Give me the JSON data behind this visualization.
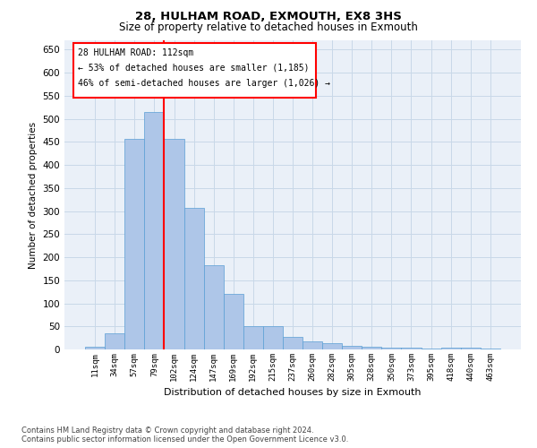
{
  "title1": "28, HULHAM ROAD, EXMOUTH, EX8 3HS",
  "title2": "Size of property relative to detached houses in Exmouth",
  "xlabel": "Distribution of detached houses by size in Exmouth",
  "ylabel": "Number of detached properties",
  "annotation_line1": "28 HULHAM ROAD: 112sqm",
  "annotation_line2": "← 53% of detached houses are smaller (1,185)",
  "annotation_line3": "46% of semi-detached houses are larger (1,026) →",
  "categories": [
    "11sqm",
    "34sqm",
    "57sqm",
    "79sqm",
    "102sqm",
    "124sqm",
    "147sqm",
    "169sqm",
    "192sqm",
    "215sqm",
    "237sqm",
    "260sqm",
    "282sqm",
    "305sqm",
    "328sqm",
    "350sqm",
    "373sqm",
    "395sqm",
    "418sqm",
    "440sqm",
    "463sqm"
  ],
  "values": [
    5,
    35,
    457,
    515,
    457,
    307,
    182,
    120,
    50,
    50,
    28,
    17,
    13,
    8,
    6,
    4,
    3,
    2,
    4,
    3,
    2
  ],
  "bar_color": "#aec6e8",
  "bar_edge_color": "#5a9fd4",
  "vline_color": "red",
  "ylim": [
    0,
    670
  ],
  "yticks": [
    0,
    50,
    100,
    150,
    200,
    250,
    300,
    350,
    400,
    450,
    500,
    550,
    600,
    650
  ],
  "grid_color": "#c8d8e8",
  "bg_color": "#eaf0f8",
  "footer1": "Contains HM Land Registry data © Crown copyright and database right 2024.",
  "footer2": "Contains public sector information licensed under the Open Government Licence v3.0."
}
